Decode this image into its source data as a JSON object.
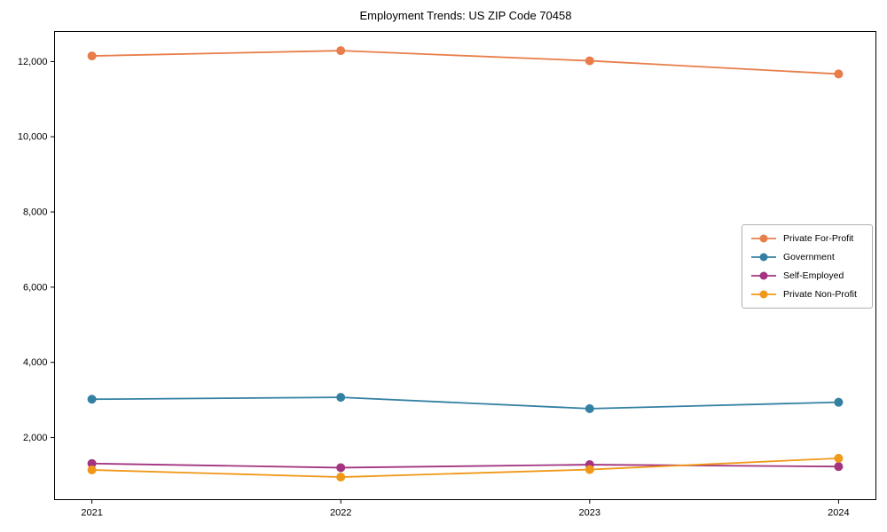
{
  "chart_data": {
    "type": "line",
    "title": "Employment Trends: US ZIP Code 70458",
    "xlabel": "",
    "ylabel": "",
    "x": [
      2021,
      2022,
      2023,
      2024
    ],
    "xticks": [
      "2021",
      "2022",
      "2023",
      "2024"
    ],
    "yticks": [
      2000,
      4000,
      6000,
      8000,
      10000,
      12000
    ],
    "ytick_labels": [
      "2,000",
      "4,000",
      "6,000",
      "8,000",
      "10,000",
      "12,000"
    ],
    "xlim": [
      2020.85,
      2024.15
    ],
    "ylim": [
      350,
      12800
    ],
    "grid": false,
    "legend_position": "center-right",
    "axis_color": "#000000",
    "background_color": "#ffffff",
    "series": [
      {
        "name": "Private For-Profit",
        "color": "#E87D4A",
        "values": [
          12150,
          12290,
          12020,
          11670
        ]
      },
      {
        "name": "Government",
        "color": "#3380A3",
        "values": [
          3020,
          3070,
          2770,
          2940
        ]
      },
      {
        "name": "Self-Employed",
        "color": "#A23480",
        "values": [
          1310,
          1200,
          1280,
          1230
        ]
      },
      {
        "name": "Private Non-Profit",
        "color": "#F09818",
        "values": [
          1140,
          950,
          1150,
          1450
        ]
      }
    ]
  }
}
